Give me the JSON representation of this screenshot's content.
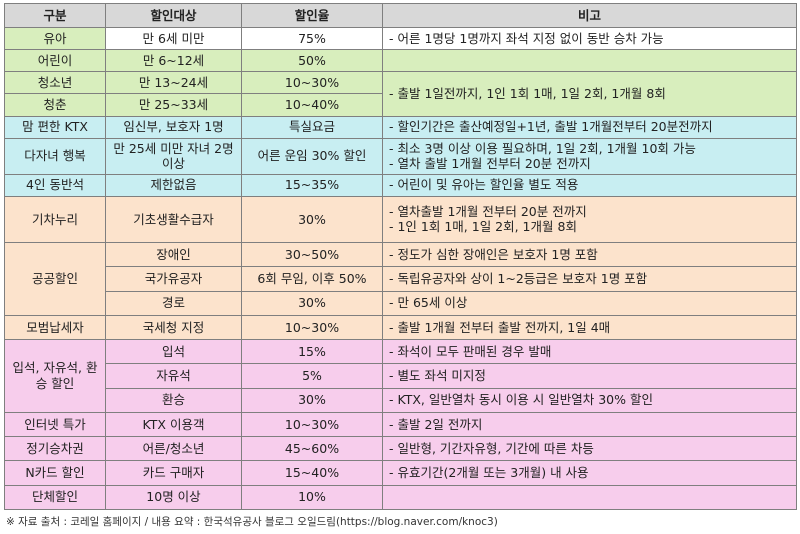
{
  "header": {
    "col1": "구분",
    "col2": "할인대상",
    "col3": "할인율",
    "col4": "비고"
  },
  "rows": {
    "infant": {
      "category": "유아",
      "target": "만 6세 미만",
      "rate": "75%",
      "note": "- 어른 1명당 1명까지 좌석 지정 없이 동반 승차 가능"
    },
    "child": {
      "category": "어린이",
      "target": "만 6~12세",
      "rate": "50%"
    },
    "youth": {
      "category": "청소년",
      "target": "만 13~24세",
      "rate": "10~30%"
    },
    "young_adult": {
      "category": "청춘",
      "target": "만 25~33세",
      "rate": "10~40%",
      "note_shared": "- 출발 1일전까지, 1인 1회 1매, 1일 2회, 1개월 8회"
    },
    "maternity": {
      "category": "맘 편한 KTX",
      "target": "임신부, 보호자 1명",
      "rate": "특실요금",
      "note": "- 할인기간은 출산예정일+1년, 출발 1개월전부터 20분전까지"
    },
    "multi_child": {
      "category": "다자녀 행복",
      "target": "만 25세 미만 자녀 2명 이상",
      "rate": "어른 운임 30% 할인",
      "note1": "- 최소 3명 이상 이용 필요하며, 1일 2회, 1개월 10회 가능",
      "note2": "- 열차 출발 1개월 전부터 20분 전까지"
    },
    "four_seat": {
      "category": "4인 동반석",
      "target": "제한없음",
      "rate": "15~35%",
      "note": "- 어린이 및 유아는 할인율 별도 적용"
    },
    "kicha_nuri": {
      "category": "기차누리",
      "target": "기초생활수급자",
      "rate": "30%",
      "note1": "- 열차출발 1개월 전부터 20분 전까지",
      "note2": "- 1인 1회 1매, 1일 2회, 1개월 8회"
    },
    "public": {
      "category": "공공할인",
      "items": [
        {
          "target": "장애인",
          "rate": "30~50%",
          "note": "- 정도가 심한 장애인은 보호자 1명 포함"
        },
        {
          "target": "국가유공자",
          "rate": "6회 무임, 이후 50%",
          "note": "- 독립유공자와 상이 1~2등급은 보호자 1명 포함"
        },
        {
          "target": "경로",
          "rate": "30%",
          "note": "- 만 65세 이상"
        }
      ]
    },
    "taxpayer": {
      "category": "모범납세자",
      "target": "국세청 지정",
      "rate": "10~30%",
      "note": "- 출발 1개월 전부터 출발 전까지, 1일 4매"
    },
    "standing": {
      "category": "입석, 자유석, 환승 할인",
      "items": [
        {
          "target": "입석",
          "rate": "15%",
          "note": "- 좌석이 모두 판매된 경우 발매"
        },
        {
          "target": "자유석",
          "rate": "5%",
          "note": "- 별도 좌석 미지정"
        },
        {
          "target": "환승",
          "rate": "30%",
          "note": "- KTX, 일반열차 동시 이용 시 일반열차 30% 할인"
        }
      ]
    },
    "internet": {
      "category": "인터넷 특가",
      "target": "KTX 이용객",
      "rate": "10~30%",
      "note": "- 출발 2일 전까지"
    },
    "commuter": {
      "category": "정기승차권",
      "target": "어른/청소년",
      "rate": "45~60%",
      "note": "- 일반형, 기간자유형, 기간에 따른 차등"
    },
    "ncard": {
      "category": "N카드 할인",
      "target": "카드 구매자",
      "rate": "15~40%",
      "note": "- 유효기간(2개월 또는 3개월) 내 사용"
    },
    "group": {
      "category": "단체할인",
      "target": "10명 이상",
      "rate": "10%",
      "note": ""
    }
  },
  "footnote": "※ 자료 출처 : 코레일 홈페이지 / 내용 요약 : 한국석유공사 블로그 오일드림(https://blog.naver.com/knoc3)",
  "colors": {
    "header": "#d8d8d8",
    "green": "#d8eebd",
    "blue": "#c8eef2",
    "orange": "#fce3cc",
    "pink": "#f7cdec",
    "border": "#7f7f7f"
  }
}
